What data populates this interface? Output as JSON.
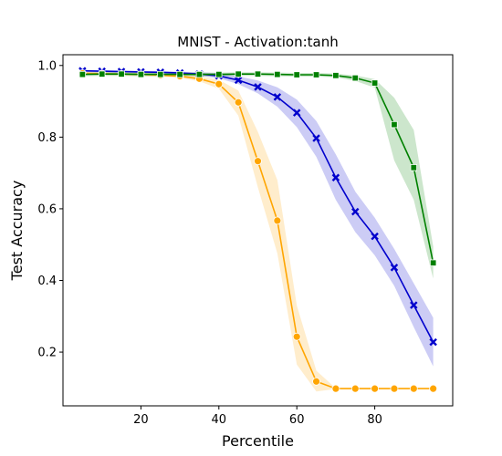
{
  "chart_data": {
    "type": "line",
    "title": "MNIST - Activation:tanh",
    "xlabel": "Percentile",
    "ylabel": "Test Accuracy",
    "xlim": [
      0,
      100
    ],
    "ylim": [
      0.05,
      1.03
    ],
    "xticks": [
      20,
      40,
      60,
      80
    ],
    "yticks": [
      0.2,
      0.4,
      0.6,
      0.8,
      1.0
    ],
    "x_tick_labels": [
      "20",
      "40",
      "60",
      "80"
    ],
    "y_tick_labels": [
      "0.2",
      "0.4",
      "0.6",
      "0.8",
      "1.0"
    ],
    "grid": false,
    "legend": "none",
    "x": [
      5,
      10,
      15,
      20,
      25,
      30,
      35,
      40,
      45,
      50,
      55,
      60,
      65,
      70,
      75,
      80,
      85,
      90,
      95
    ],
    "series": [
      {
        "color": "#0000cc",
        "marker": "x",
        "values": [
          0.985,
          0.984,
          0.983,
          0.982,
          0.981,
          0.979,
          0.976,
          0.971,
          0.959,
          0.94,
          0.912,
          0.868,
          0.797,
          0.687,
          0.592,
          0.523,
          0.436,
          0.331,
          0.228
        ],
        "band_lower": [
          0.982,
          0.981,
          0.98,
          0.979,
          0.977,
          0.975,
          0.971,
          0.964,
          0.948,
          0.922,
          0.885,
          0.828,
          0.745,
          0.625,
          0.535,
          0.47,
          0.385,
          0.27,
          0.16
        ],
        "band_upper": [
          0.988,
          0.987,
          0.986,
          0.985,
          0.984,
          0.983,
          0.981,
          0.978,
          0.97,
          0.958,
          0.939,
          0.905,
          0.845,
          0.752,
          0.648,
          0.575,
          0.488,
          0.392,
          0.296
        ]
      },
      {
        "color": "#ffa500",
        "marker": "o",
        "values": [
          0.978,
          0.977,
          0.976,
          0.975,
          0.973,
          0.97,
          0.963,
          0.948,
          0.897,
          0.733,
          0.567,
          0.243,
          0.118,
          0.098,
          0.098,
          0.098,
          0.098,
          0.098,
          0.098
        ],
        "band_lower": [
          0.974,
          0.973,
          0.972,
          0.971,
          0.969,
          0.965,
          0.956,
          0.935,
          0.86,
          0.66,
          0.475,
          0.165,
          0.09,
          0.097,
          0.097,
          0.097,
          0.097,
          0.097,
          0.097
        ],
        "band_upper": [
          0.982,
          0.981,
          0.98,
          0.979,
          0.977,
          0.975,
          0.97,
          0.96,
          0.93,
          0.815,
          0.68,
          0.33,
          0.148,
          0.099,
          0.099,
          0.099,
          0.099,
          0.099,
          0.099
        ]
      },
      {
        "color": "#008000",
        "marker": "s",
        "values": [
          0.975,
          0.976,
          0.976,
          0.975,
          0.975,
          0.975,
          0.975,
          0.975,
          0.976,
          0.976,
          0.975,
          0.974,
          0.974,
          0.972,
          0.965,
          0.951,
          0.835,
          0.715,
          0.449
        ],
        "band_lower": [
          0.97,
          0.971,
          0.971,
          0.97,
          0.97,
          0.97,
          0.97,
          0.97,
          0.971,
          0.971,
          0.97,
          0.969,
          0.969,
          0.967,
          0.957,
          0.938,
          0.735,
          0.625,
          0.405
        ],
        "band_upper": [
          0.98,
          0.981,
          0.981,
          0.98,
          0.98,
          0.98,
          0.98,
          0.98,
          0.981,
          0.981,
          0.98,
          0.979,
          0.979,
          0.977,
          0.972,
          0.962,
          0.91,
          0.82,
          0.495
        ]
      }
    ]
  }
}
